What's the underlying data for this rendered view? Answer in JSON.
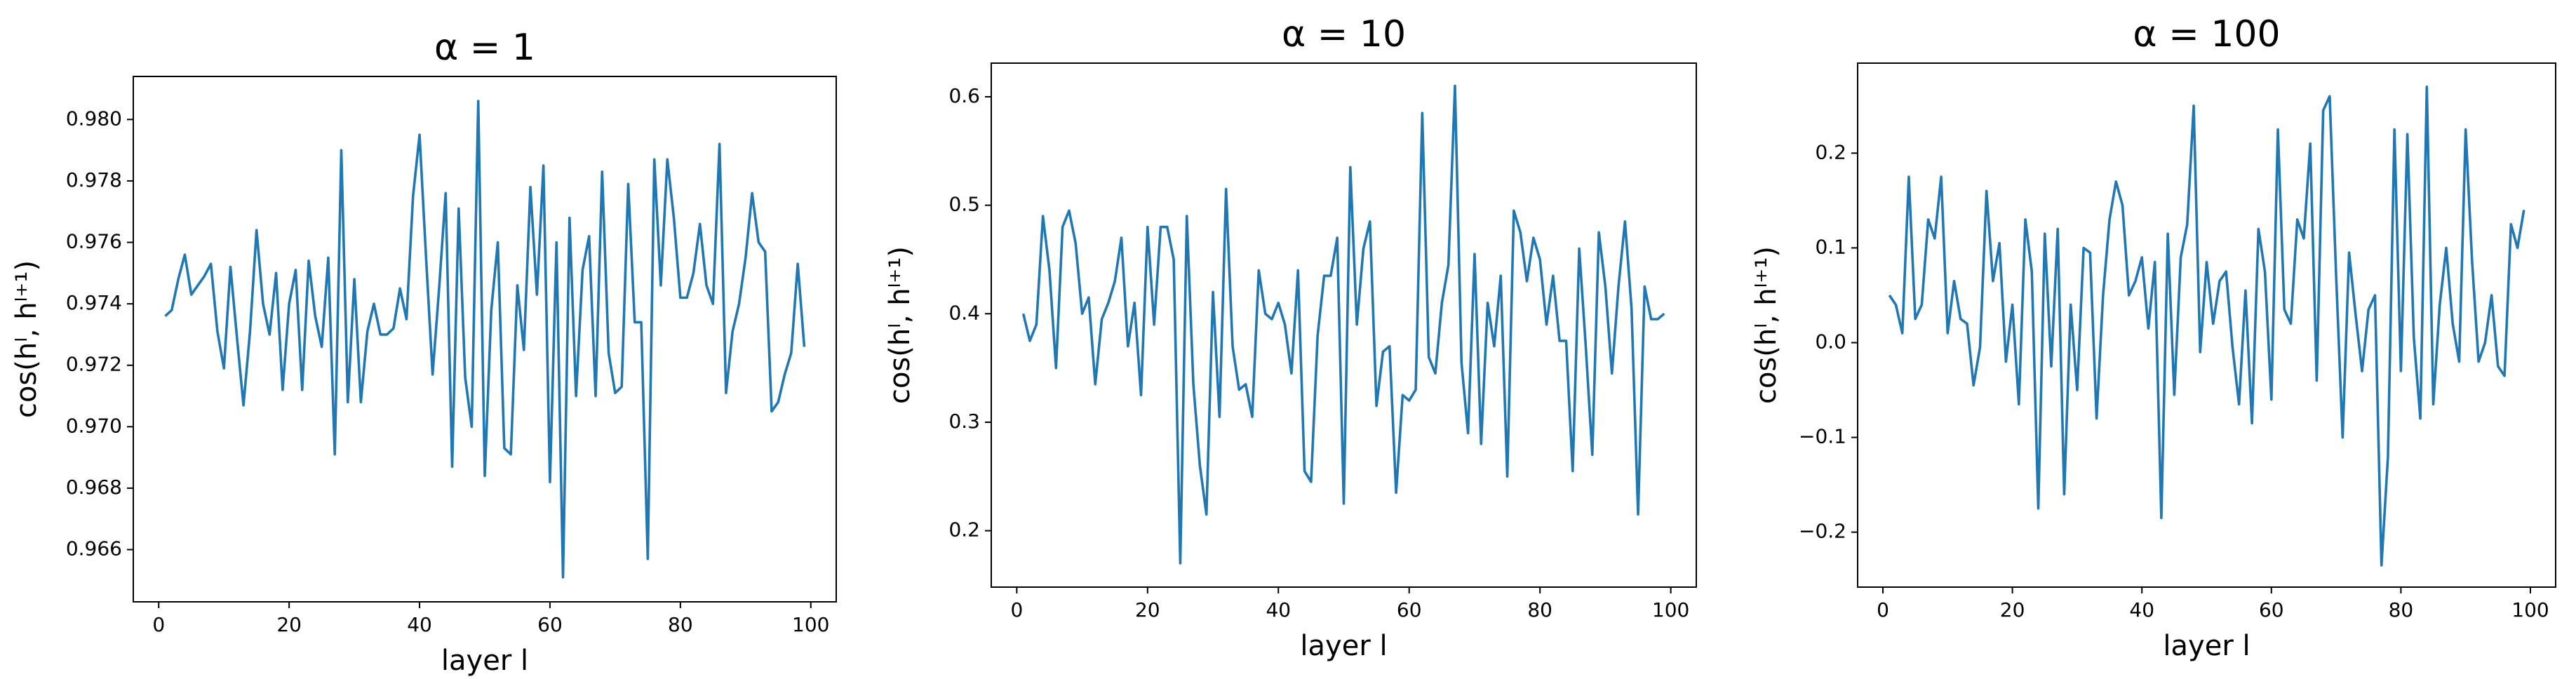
{
  "chart_data": [
    {
      "type": "line",
      "title": "α = 1",
      "xlabel": "layer l",
      "ylabel": "cos(hˡ, hˡ⁺¹)",
      "color": "#1f77b4",
      "x": [
        1,
        2,
        3,
        4,
        5,
        6,
        7,
        8,
        9,
        10,
        11,
        12,
        13,
        14,
        15,
        16,
        17,
        18,
        19,
        20,
        21,
        22,
        23,
        24,
        25,
        26,
        27,
        28,
        29,
        30,
        31,
        32,
        33,
        34,
        35,
        36,
        37,
        38,
        39,
        40,
        41,
        42,
        43,
        44,
        45,
        46,
        47,
        48,
        49,
        50,
        51,
        52,
        53,
        54,
        55,
        56,
        57,
        58,
        59,
        60,
        61,
        62,
        63,
        64,
        65,
        66,
        67,
        68,
        69,
        70,
        71,
        72,
        73,
        74,
        75,
        76,
        77,
        78,
        79,
        80,
        81,
        82,
        83,
        84,
        85,
        86,
        87,
        88,
        89,
        90,
        91,
        92,
        93,
        94,
        95,
        96,
        97,
        98,
        99
      ],
      "values": [
        0.9736,
        0.9738,
        0.9748,
        0.9756,
        0.9743,
        0.9746,
        0.9749,
        0.9753,
        0.9731,
        0.9719,
        0.9752,
        0.9729,
        0.9707,
        0.9731,
        0.9764,
        0.974,
        0.973,
        0.975,
        0.9712,
        0.974,
        0.9751,
        0.9712,
        0.9754,
        0.9736,
        0.9726,
        0.9755,
        0.9691,
        0.979,
        0.9708,
        0.9748,
        0.9708,
        0.9731,
        0.974,
        0.973,
        0.973,
        0.9732,
        0.9745,
        0.9735,
        0.9775,
        0.9795,
        0.9755,
        0.9717,
        0.9745,
        0.9776,
        0.9687,
        0.9771,
        0.9716,
        0.97,
        0.9806,
        0.9684,
        0.9738,
        0.976,
        0.9693,
        0.9691,
        0.9746,
        0.9725,
        0.9778,
        0.9743,
        0.9785,
        0.9682,
        0.976,
        0.9651,
        0.9768,
        0.971,
        0.9751,
        0.9762,
        0.971,
        0.9783,
        0.9724,
        0.9711,
        0.9713,
        0.9779,
        0.9734,
        0.9734,
        0.9657,
        0.9787,
        0.9746,
        0.9787,
        0.9768,
        0.9742,
        0.9742,
        0.975,
        0.9766,
        0.9746,
        0.974,
        0.9792,
        0.9711,
        0.9731,
        0.974,
        0.9755,
        0.9776,
        0.976,
        0.9757,
        0.9705,
        0.9708,
        0.9717,
        0.9724,
        0.9753,
        0.9726
      ],
      "xlim": [
        -3.9,
        103.9
      ],
      "xticks": [
        0,
        20,
        40,
        60,
        80,
        100
      ],
      "ylim": [
        0.9643,
        0.9814
      ],
      "yticks": [
        0.966,
        0.968,
        {
          "value": 0.97,
          "label": "0.970"
        },
        0.972,
        0.974,
        0.976,
        0.978,
        {
          "value": 0.98,
          "label": "0.980"
        }
      ]
    },
    {
      "type": "line",
      "title": "α = 10",
      "xlabel": "layer l",
      "ylabel": "cos(hˡ, hˡ⁺¹)",
      "color": "#1f77b4",
      "x": [
        1,
        2,
        3,
        4,
        5,
        6,
        7,
        8,
        9,
        10,
        11,
        12,
        13,
        14,
        15,
        16,
        17,
        18,
        19,
        20,
        21,
        22,
        23,
        24,
        25,
        26,
        27,
        28,
        29,
        30,
        31,
        32,
        33,
        34,
        35,
        36,
        37,
        38,
        39,
        40,
        41,
        42,
        43,
        44,
        45,
        46,
        47,
        48,
        49,
        50,
        51,
        52,
        53,
        54,
        55,
        56,
        57,
        58,
        59,
        60,
        61,
        62,
        63,
        64,
        65,
        66,
        67,
        68,
        69,
        70,
        71,
        72,
        73,
        74,
        75,
        76,
        77,
        78,
        79,
        80,
        81,
        82,
        83,
        84,
        85,
        86,
        87,
        88,
        89,
        90,
        91,
        92,
        93,
        94,
        95,
        96,
        97,
        98,
        99
      ],
      "values": [
        0.4,
        0.375,
        0.39,
        0.49,
        0.44,
        0.35,
        0.48,
        0.495,
        0.465,
        0.4,
        0.415,
        0.335,
        0.395,
        0.41,
        0.43,
        0.47,
        0.37,
        0.41,
        0.325,
        0.48,
        0.39,
        0.48,
        0.48,
        0.45,
        0.17,
        0.49,
        0.335,
        0.26,
        0.215,
        0.42,
        0.305,
        0.515,
        0.37,
        0.33,
        0.335,
        0.305,
        0.44,
        0.4,
        0.395,
        0.41,
        0.39,
        0.345,
        0.44,
        0.255,
        0.245,
        0.38,
        0.435,
        0.435,
        0.47,
        0.225,
        0.535,
        0.39,
        0.46,
        0.485,
        0.315,
        0.365,
        0.37,
        0.235,
        0.325,
        0.32,
        0.33,
        0.585,
        0.36,
        0.345,
        0.41,
        0.445,
        0.61,
        0.355,
        0.29,
        0.455,
        0.28,
        0.41,
        0.37,
        0.435,
        0.25,
        0.495,
        0.475,
        0.43,
        0.47,
        0.45,
        0.39,
        0.435,
        0.375,
        0.375,
        0.255,
        0.46,
        0.37,
        0.27,
        0.475,
        0.425,
        0.345,
        0.425,
        0.485,
        0.405,
        0.215,
        0.425,
        0.395,
        0.395,
        0.4
      ],
      "xlim": [
        -3.9,
        103.9
      ],
      "xticks": [
        0,
        20,
        40,
        60,
        80,
        100
      ],
      "ylim": [
        0.148,
        0.631
      ],
      "yticks": [
        0.2,
        0.3,
        0.4,
        0.5,
        0.6
      ]
    },
    {
      "type": "line",
      "title": "α = 100",
      "xlabel": "layer l",
      "ylabel": "cos(hˡ, hˡ⁺¹)",
      "color": "#1f77b4",
      "x": [
        1,
        2,
        3,
        4,
        5,
        6,
        7,
        8,
        9,
        10,
        11,
        12,
        13,
        14,
        15,
        16,
        17,
        18,
        19,
        20,
        21,
        22,
        23,
        24,
        25,
        26,
        27,
        28,
        29,
        30,
        31,
        32,
        33,
        34,
        35,
        36,
        37,
        38,
        39,
        40,
        41,
        42,
        43,
        44,
        45,
        46,
        47,
        48,
        49,
        50,
        51,
        52,
        53,
        54,
        55,
        56,
        57,
        58,
        59,
        60,
        61,
        62,
        63,
        64,
        65,
        66,
        67,
        68,
        69,
        70,
        71,
        72,
        73,
        74,
        75,
        76,
        77,
        78,
        79,
        80,
        81,
        82,
        83,
        84,
        85,
        86,
        87,
        88,
        89,
        90,
        91,
        92,
        93,
        94,
        95,
        96,
        97,
        98,
        99
      ],
      "values": [
        0.05,
        0.04,
        0.01,
        0.175,
        0.025,
        0.04,
        0.13,
        0.11,
        0.175,
        0.01,
        0.065,
        0.025,
        0.02,
        -0.045,
        -0.005,
        0.16,
        0.065,
        0.105,
        -0.02,
        0.04,
        -0.065,
        0.13,
        0.075,
        -0.175,
        0.115,
        -0.025,
        0.12,
        -0.16,
        0.04,
        -0.05,
        0.1,
        0.095,
        -0.08,
        0.05,
        0.13,
        0.17,
        0.145,
        0.05,
        0.065,
        0.09,
        0.015,
        0.085,
        -0.185,
        0.115,
        -0.055,
        0.09,
        0.125,
        0.25,
        -0.01,
        0.085,
        0.02,
        0.065,
        0.075,
        -0.005,
        -0.065,
        0.055,
        -0.085,
        0.12,
        0.075,
        -0.06,
        0.225,
        0.035,
        0.02,
        0.13,
        0.11,
        0.21,
        -0.04,
        0.245,
        0.26,
        0.07,
        -0.1,
        0.095,
        0.03,
        -0.03,
        0.035,
        0.05,
        -0.235,
        -0.12,
        0.225,
        -0.03,
        0.22,
        0.005,
        -0.08,
        0.27,
        -0.065,
        0.04,
        0.1,
        0.02,
        -0.02,
        0.225,
        0.085,
        -0.02,
        0,
        0.05,
        -0.025,
        -0.035,
        0.125,
        0.1,
        0.14
      ],
      "xlim": [
        -3.9,
        103.9
      ],
      "xticks": [
        0,
        20,
        40,
        60,
        80,
        100
      ],
      "ylim": [
        -0.258,
        0.295
      ],
      "yticks": [
        {
          "value": -0.2,
          "label": "−0.2"
        },
        {
          "value": -0.1,
          "label": "−0.1"
        },
        {
          "value": 0,
          "label": "0.0"
        },
        0.1,
        0.2
      ]
    }
  ]
}
